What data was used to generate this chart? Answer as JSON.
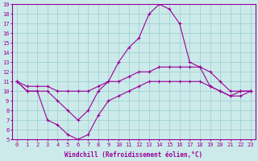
{
  "xlabel": "Windchill (Refroidissement éolien,°C)",
  "bg_color": "#cceaea",
  "line_color": "#990099",
  "grid_color": "#99cccc",
  "xlim": [
    -0.5,
    23.5
  ],
  "ylim": [
    5,
    19
  ],
  "yticks": [
    5,
    6,
    7,
    8,
    9,
    10,
    11,
    12,
    13,
    14,
    15,
    16,
    17,
    18,
    19
  ],
  "xticks": [
    0,
    1,
    2,
    3,
    4,
    5,
    6,
    7,
    8,
    9,
    10,
    11,
    12,
    13,
    14,
    15,
    16,
    17,
    18,
    19,
    20,
    21,
    22,
    23
  ],
  "series": [
    {
      "x": [
        0,
        1,
        2,
        3,
        4,
        5,
        6,
        7,
        8,
        9,
        10,
        11,
        12,
        13,
        14,
        15,
        16,
        17,
        18,
        19,
        20,
        21,
        22,
        23
      ],
      "y": [
        11,
        10,
        10,
        10,
        9,
        8,
        7,
        8,
        10,
        11,
        13,
        14.5,
        15.5,
        18,
        19,
        18.5,
        17,
        13,
        12.5,
        10.5,
        10,
        9.5,
        10,
        10
      ]
    },
    {
      "x": [
        0,
        1,
        2,
        3,
        4,
        5,
        6,
        7,
        8,
        9,
        10,
        11,
        12,
        13,
        14,
        15,
        16,
        17,
        18,
        19,
        20,
        21,
        22,
        23
      ],
      "y": [
        11,
        10.5,
        10.5,
        10.5,
        10,
        10,
        10,
        10,
        10.5,
        11,
        11,
        11.5,
        12,
        12,
        12.5,
        12.5,
        12.5,
        12.5,
        12.5,
        12,
        11,
        10,
        10,
        10
      ]
    },
    {
      "x": [
        0,
        1,
        2,
        3,
        4,
        5,
        6,
        7,
        8,
        9,
        10,
        11,
        12,
        13,
        14,
        15,
        16,
        17,
        18,
        19,
        20,
        21,
        22,
        23
      ],
      "y": [
        11,
        10,
        10,
        7,
        6.5,
        5.5,
        5,
        5.5,
        7.5,
        9,
        9.5,
        10,
        10.5,
        11,
        11,
        11,
        11,
        11,
        11,
        10.5,
        10,
        9.5,
        9.5,
        10
      ]
    }
  ]
}
